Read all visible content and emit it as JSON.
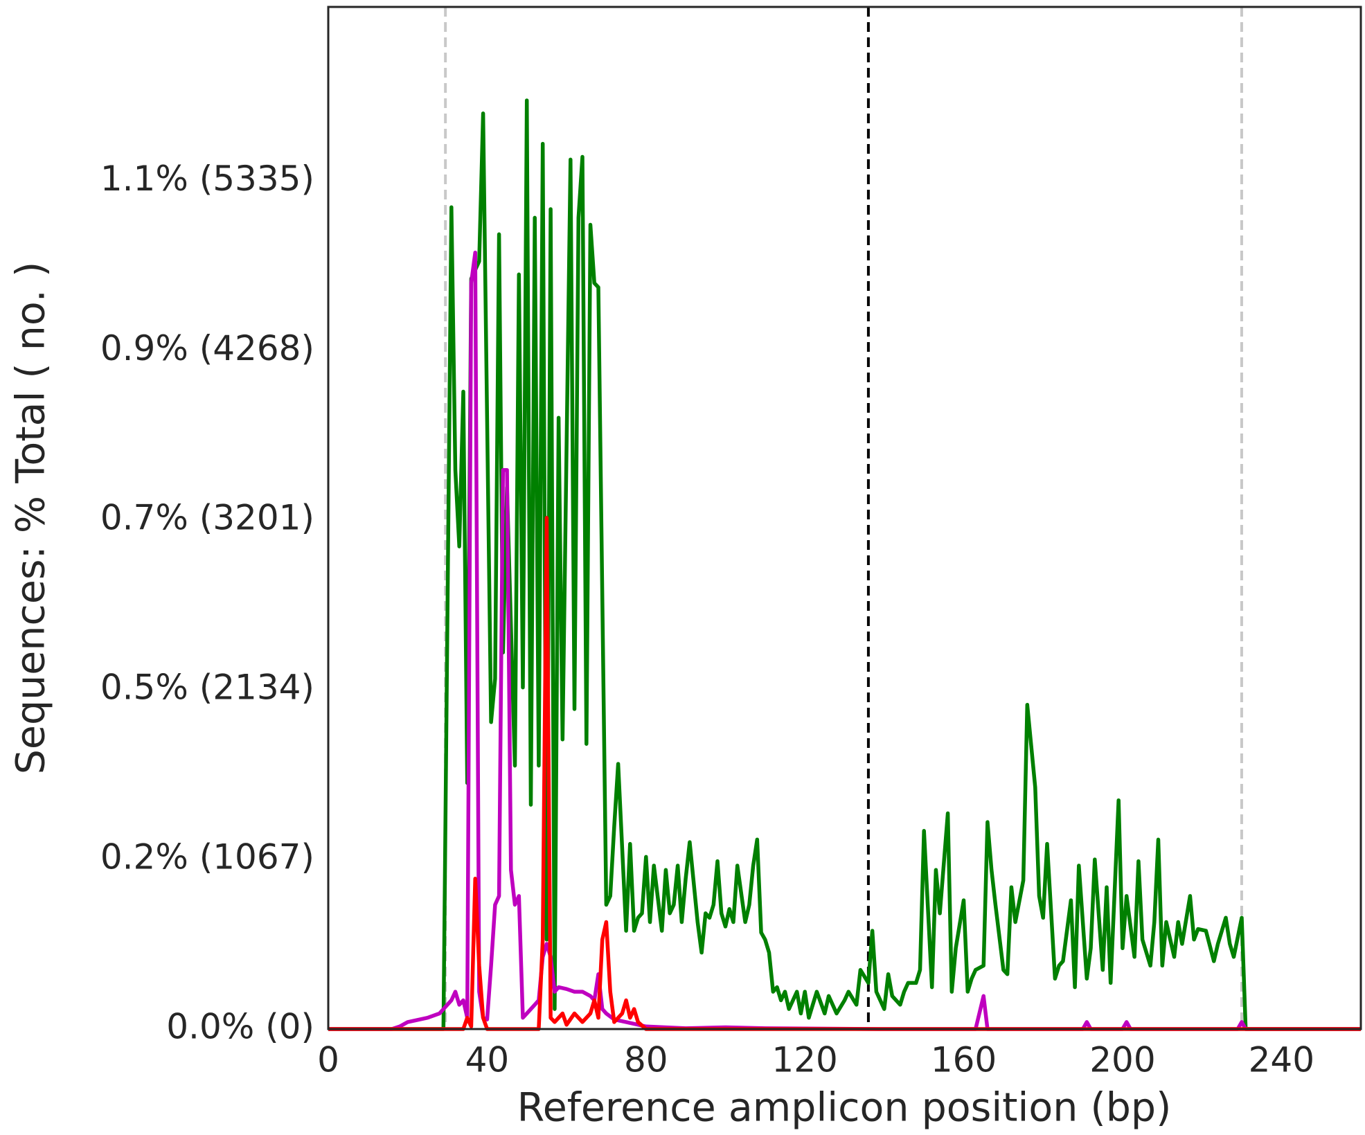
{
  "chart_data": {
    "type": "line",
    "xlabel": "Reference amplicon position (bp)",
    "ylabel": "Sequences: % Total ( no. )",
    "xlim": [
      0,
      260
    ],
    "ylim": [
      0,
      6430
    ],
    "xticks": [
      0,
      40,
      80,
      120,
      160,
      200,
      240
    ],
    "yticks": [
      {
        "value": 0,
        "label": "0.0% (0)"
      },
      {
        "value": 1067,
        "label": "0.2% (1067)"
      },
      {
        "value": 2134,
        "label": "0.5% (2134)"
      },
      {
        "value": 3201,
        "label": "0.7% (3201)"
      },
      {
        "value": 4268,
        "label": "0.9% (4268)"
      },
      {
        "value": 5335,
        "label": "1.1% (5335)"
      }
    ],
    "grid": false,
    "vlines": [
      {
        "x": 29.5,
        "color": "#c8c8c8"
      },
      {
        "x": 136,
        "color": "#000000"
      },
      {
        "x": 230,
        "color": "#c8c8c8"
      }
    ],
    "series": [
      {
        "color": "#008000",
        "x": [
          0,
          29,
          31,
          32,
          33,
          34,
          35,
          36,
          38,
          39,
          41,
          42,
          43,
          44,
          45,
          47,
          48,
          49,
          50,
          51,
          52,
          53,
          54,
          55,
          56,
          57,
          58,
          59,
          61,
          62,
          63,
          64,
          65,
          66,
          67,
          68,
          70,
          71,
          72,
          73,
          75,
          76,
          77,
          78,
          79,
          80,
          81,
          82,
          84,
          85,
          86,
          87,
          88,
          89,
          90,
          91,
          93,
          94,
          95,
          96,
          97,
          98,
          99,
          100,
          101,
          102,
          103,
          105,
          106,
          107,
          108,
          109,
          110,
          111,
          112,
          113,
          114,
          115,
          116,
          118,
          119,
          120,
          121,
          122,
          123,
          125,
          126,
          127,
          128,
          130,
          131,
          133,
          134,
          136,
          137,
          138,
          140,
          141,
          142,
          144,
          145,
          146,
          148,
          149,
          150,
          152,
          153,
          154,
          156,
          157,
          158,
          160,
          161,
          162,
          163,
          165,
          166,
          167,
          168,
          170,
          171,
          172,
          173,
          175,
          176,
          178,
          179,
          180,
          181,
          183,
          184,
          185,
          187,
          188,
          189,
          191,
          192,
          193,
          195,
          196,
          197,
          199,
          200,
          201,
          203,
          204,
          205,
          207,
          208,
          209,
          210,
          211,
          213,
          214,
          215,
          217,
          218,
          219,
          221,
          223,
          224,
          226,
          227,
          228,
          230,
          231,
          260
        ],
        "values": [
          0,
          0,
          5170,
          3517,
          3036,
          4010,
          1548,
          4720,
          4830,
          5760,
          1931,
          2204,
          5000,
          2369,
          3408,
          1657,
          4747,
          2149,
          5842,
          1411,
          5104,
          1657,
          5569,
          563,
          5158,
          126,
          3846,
          1822,
          5470,
          2013,
          5104,
          5487,
          1794,
          5060,
          4693,
          4666,
          782,
          837,
          1275,
          1668,
          618,
          1165,
          618,
          700,
          728,
          1083,
          673,
          1028,
          618,
          1001,
          728,
          782,
          1028,
          673,
          946,
          1176,
          673,
          481,
          728,
          700,
          782,
          1056,
          728,
          645,
          755,
          673,
          1028,
          673,
          782,
          1028,
          1192,
          607,
          563,
          481,
          235,
          263,
          181,
          235,
          126,
          235,
          98,
          235,
          71,
          153,
          235,
          98,
          208,
          153,
          98,
          181,
          235,
          153,
          372,
          290,
          618,
          235,
          126,
          345,
          208,
          153,
          235,
          290,
          290,
          372,
          1247,
          263,
          1001,
          728,
          1357,
          235,
          509,
          810,
          235,
          317,
          372,
          399,
          1302,
          1001,
          782,
          372,
          345,
          892,
          673,
          935,
          2040,
          1521,
          837,
          700,
          1165,
          317,
          399,
          427,
          810,
          263,
          1028,
          317,
          509,
          1067,
          372,
          892,
          290,
          1439,
          509,
          837,
          454,
          1056,
          563,
          399,
          673,
          1192,
          399,
          673,
          454,
          673,
          536,
          837,
          563,
          629,
          618,
          427,
          536,
          700,
          536,
          454,
          700,
          0,
          0
        ]
      },
      {
        "color": "#bf00bf",
        "x": [
          0,
          16,
          18,
          20,
          22,
          25,
          28,
          30,
          31,
          32,
          33,
          34,
          35,
          36,
          37,
          38,
          39,
          40,
          41,
          42,
          43,
          44,
          45,
          46,
          47,
          48,
          49,
          50,
          51,
          52,
          53,
          54,
          55,
          56,
          57,
          58,
          60,
          62,
          64,
          66,
          67,
          68,
          69,
          70,
          72,
          75,
          80,
          90,
          100,
          110,
          140,
          163,
          165,
          166,
          190,
          191,
          192,
          200,
          201,
          202,
          229,
          230,
          231,
          260
        ],
        "values": [
          0,
          0,
          16,
          44,
          55,
          71,
          98,
          153,
          181,
          235,
          153,
          181,
          71,
          4693,
          4885,
          235,
          71,
          60,
          399,
          782,
          837,
          3517,
          3517,
          1001,
          782,
          837,
          71,
          98,
          126,
          153,
          181,
          454,
          536,
          454,
          235,
          263,
          252,
          235,
          235,
          208,
          181,
          345,
          126,
          98,
          60,
          44,
          16,
          5,
          11,
          5,
          0,
          0,
          208,
          0,
          0,
          44,
          0,
          0,
          44,
          0,
          0,
          44,
          0,
          0
        ]
      },
      {
        "color": "#ff0000",
        "x": [
          0,
          34,
          35,
          36,
          37,
          38,
          39,
          40,
          53,
          54,
          55,
          56,
          57,
          59,
          60,
          62,
          64,
          66,
          67,
          68,
          69,
          70,
          71,
          72,
          74,
          75,
          76,
          77,
          78,
          80,
          260
        ],
        "values": [
          0,
          0,
          71,
          16,
          946,
          399,
          71,
          0,
          0,
          563,
          3216,
          71,
          44,
          98,
          27,
          98,
          44,
          98,
          181,
          71,
          563,
          673,
          235,
          44,
          98,
          181,
          71,
          126,
          44,
          0,
          0
        ]
      }
    ]
  }
}
